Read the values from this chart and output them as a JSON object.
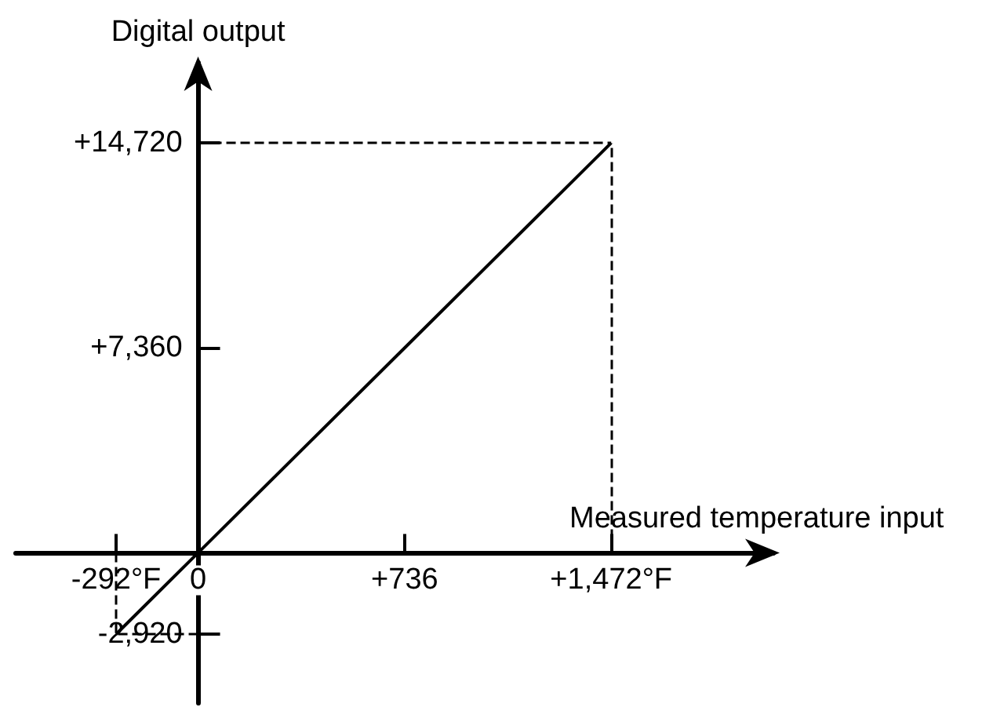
{
  "chart_data": {
    "type": "line",
    "xlabel": "Measured temperature input",
    "ylabel": "Digital output",
    "x": [
      -292,
      0,
      1472
    ],
    "series": [
      {
        "color": "#000000",
        "values": [
          -2920,
          0,
          14720
        ]
      }
    ],
    "xlim": [
      -650,
      2050
    ],
    "ylim": [
      -5400,
      17600
    ],
    "xticks": [
      {
        "value": -292,
        "label": "-292°F"
      },
      0,
      {
        "value": 736,
        "label": "+736"
      },
      {
        "value": 1472,
        "label": "+1,472°F"
      }
    ],
    "yticks": [
      {
        "value": -2920,
        "label": "-2,920"
      },
      {
        "value": 7360,
        "label": "+7,360"
      },
      {
        "value": 14720,
        "label": "+14,720"
      }
    ],
    "ref_lines": [
      {
        "axis": "x",
        "value": -292,
        "line_style": "dashed"
      },
      {
        "axis": "x",
        "value": 1472,
        "line_style": "dashed"
      },
      {
        "axis": "y",
        "value": -2920,
        "line_style": "dashed"
      },
      {
        "axis": "y",
        "value": 14720,
        "line_style": "dashed"
      }
    ],
    "marker": "none",
    "line_style": "solid",
    "grid": false
  }
}
